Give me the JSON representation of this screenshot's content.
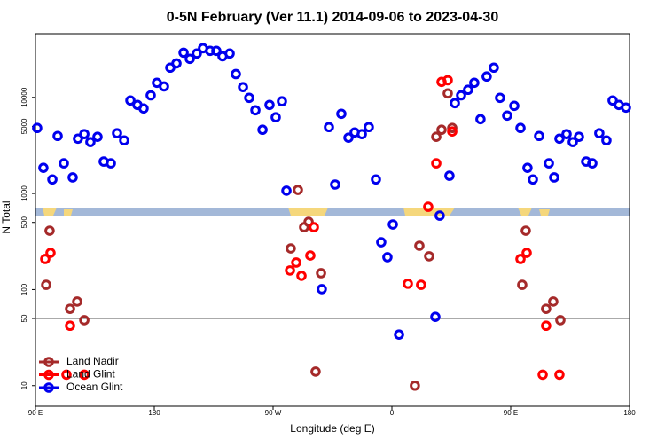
{
  "chart_data": {
    "type": "scatter",
    "title": "0-5N February (Ver 11.1)   2014-09-06 to 2023-04-30",
    "x_label": "Longitude (deg E)",
    "y_label": "N Total",
    "ylog": true,
    "ylim": [
      6.1,
      46000
    ],
    "yticks": [
      10,
      50,
      100,
      500,
      1000,
      5000,
      10000
    ],
    "xlim": [
      90,
      540
    ],
    "xticks": [
      {
        "value": 90,
        "label": "90 E"
      },
      {
        "value": 180,
        "label": "180"
      },
      {
        "value": 270,
        "label": "90 W"
      },
      {
        "value": 360,
        "label": "0"
      },
      {
        "value": 450,
        "label": "90 E"
      },
      {
        "value": 540,
        "label": "180"
      }
    ],
    "reference_line": 50,
    "legend": "lower left",
    "series": [
      {
        "name": "Land Nadir",
        "color": "#a52a2a",
        "x": [
          100.7,
          98.1,
          116.2,
          121.6,
          127,
          288.8,
          283.4,
          293.5,
          296.9,
          306.3,
          302.2,
          380.8,
          388.2,
          377.4,
          393.6,
          397.6,
          402.3,
          405.7,
          461.4,
          458.7,
          476.8,
          482.2,
          487.6
        ],
        "values": [
          410,
          112,
          63,
          75,
          48,
          1090,
          268,
          446,
          507,
          148,
          14,
          286,
          222,
          10,
          3890,
          4610,
          11000,
          4810,
          410,
          112,
          63,
          75,
          48
        ]
      },
      {
        "name": "Land Glint",
        "color": "#ff0000",
        "x": [
          97.4,
          101.4,
          116.2,
          113.5,
          127,
          282.8,
          287.5,
          291.5,
          298.2,
          300.9,
          372.1,
          382.1,
          387.5,
          393.6,
          397.6,
          402.3,
          405.7,
          457.4,
          462.1,
          476.8,
          474.2,
          486.9
        ],
        "values": [
          208,
          241,
          42,
          13,
          13,
          158,
          191,
          139,
          226,
          446,
          115,
          112,
          727,
          2060,
          14500,
          15100,
          4420,
          208,
          241,
          42,
          13,
          13
        ]
      },
      {
        "name": "Ocean Glint",
        "color": "#0000ee",
        "x": [
          91.3,
          96,
          102.8,
          106.8,
          111.5,
          118.2,
          122.2,
          127,
          131.6,
          137,
          141.7,
          147.1,
          151.8,
          157.2,
          161.9,
          167.2,
          171.9,
          177.3,
          182,
          187.4,
          192.1,
          196.8,
          202.2,
          206.9,
          212.2,
          216.9,
          222.3,
          227,
          231.7,
          237.1,
          241.8,
          247.2,
          251.9,
          256.6,
          262,
          267.3,
          272,
          276.7,
          280.1,
          306.9,
          312.3,
          317,
          321.7,
          327.1,
          331.8,
          337.2,
          342.5,
          347.9,
          351.9,
          356.6,
          360.7,
          365.4,
          392.9,
          396.2,
          403.6,
          407.7,
          412.4,
          417.7,
          422.4,
          427.1,
          431.8,
          437.2,
          441.9,
          447.3,
          452.7,
          457.4,
          462.7,
          466.8,
          471.5,
          478.9,
          482.9,
          486.9,
          492.3,
          497,
          501.7,
          507.1,
          511.8,
          517.1,
          522.5,
          527.2,
          531.9,
          537.3
        ],
        "values": [
          4810,
          1850,
          1400,
          3970,
          2060,
          1470,
          3720,
          4150,
          3430,
          3890,
          2150,
          2060,
          4240,
          3570,
          9290,
          8350,
          7670,
          10500,
          14200,
          13000,
          20400,
          22600,
          29200,
          25200,
          28600,
          32500,
          30500,
          30500,
          26800,
          28600,
          17500,
          12800,
          9890,
          7350,
          4610,
          8350,
          6210,
          9100,
          1070,
          101,
          4910,
          1240,
          6750,
          3810,
          4320,
          4150,
          4910,
          1400,
          311,
          217,
          476,
          34,
          52,
          588,
          1530,
          8710,
          10500,
          12000,
          14200,
          5940,
          16500,
          20400,
          9890,
          6470,
          8170,
          4810,
          1850,
          1400,
          3970,
          2060,
          1470,
          3720,
          4150,
          3430,
          3890,
          2150,
          2060,
          4240,
          3570,
          9290,
          8350,
          7830
        ]
      }
    ]
  }
}
